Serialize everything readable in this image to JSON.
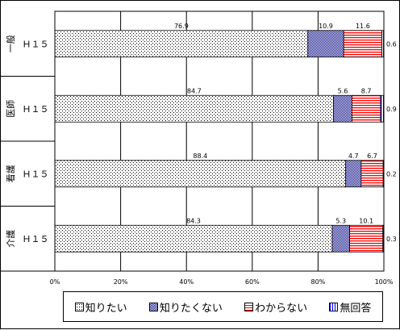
{
  "chart_data": {
    "type": "bar",
    "orientation": "horizontal",
    "stacked": true,
    "categories": [
      {
        "group": "一般",
        "label": "Ｈ１５"
      },
      {
        "group": "医師",
        "label": "Ｈ１５"
      },
      {
        "group": "看護",
        "label": "Ｈ１５"
      },
      {
        "group": "介護",
        "label": "Ｈ１５"
      }
    ],
    "series": [
      {
        "name": "知りたい",
        "values": [
          76.9,
          84.7,
          88.4,
          84.3
        ],
        "labels": [
          "76.9",
          "84.7",
          "88.4",
          "84.3"
        ],
        "color": "#ffffff",
        "pattern": "dots"
      },
      {
        "name": "知りたくない",
        "values": [
          10.9,
          5.6,
          4.7,
          5.3
        ],
        "labels": [
          "10.9",
          "5.6",
          "4.7",
          "5.3"
        ],
        "color": "#000080",
        "pattern": "checker"
      },
      {
        "name": "わからない",
        "values": [
          11.6,
          8.7,
          6.7,
          10.1
        ],
        "labels": [
          "11.6",
          "8.7",
          "6.7",
          "10.1"
        ],
        "color": "#ff0000",
        "pattern": "hstripes"
      },
      {
        "name": "無回答",
        "values": [
          0.6,
          0.9,
          0.2,
          0.3
        ],
        "labels": [
          "0.6",
          "0.9",
          "0.2",
          "0.3"
        ],
        "color": "#0000ff",
        "pattern": "vstripes"
      }
    ],
    "xlim": [
      0,
      100
    ],
    "xticks": [
      "0%",
      "20%",
      "40%",
      "60%",
      "80%",
      "100%"
    ],
    "grid": true,
    "legend_position": "bottom"
  }
}
